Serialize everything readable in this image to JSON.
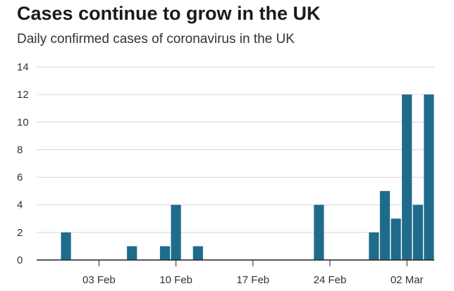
{
  "chart_data": {
    "type": "bar",
    "title": "Cases continue to grow in the UK",
    "subtitle": "Daily confirmed cases of coronavirus in the UK",
    "xlabel": "",
    "ylabel": "",
    "ylim": [
      0,
      14
    ],
    "yticks": [
      0,
      2,
      4,
      6,
      8,
      10,
      12,
      14
    ],
    "grid": true,
    "bar_color": "#1f6b8c",
    "x_start_date": "2020-01-31",
    "xticks": [
      {
        "label": "03 Feb",
        "day": 3
      },
      {
        "label": "10 Feb",
        "day": 10
      },
      {
        "label": "17 Feb",
        "day": 17
      },
      {
        "label": "24 Feb",
        "day": 24
      },
      {
        "label": "02 Mar",
        "day": 31
      }
    ],
    "x": [
      "31 Jan",
      "01 Feb",
      "02 Feb",
      "03 Feb",
      "04 Feb",
      "05 Feb",
      "06 Feb",
      "07 Feb",
      "08 Feb",
      "09 Feb",
      "10 Feb",
      "11 Feb",
      "12 Feb",
      "13 Feb",
      "14 Feb",
      "15 Feb",
      "16 Feb",
      "17 Feb",
      "18 Feb",
      "19 Feb",
      "20 Feb",
      "21 Feb",
      "22 Feb",
      "23 Feb",
      "24 Feb",
      "25 Feb",
      "26 Feb",
      "27 Feb",
      "28 Feb",
      "29 Feb",
      "01 Mar",
      "02 Mar",
      "03 Mar",
      "04 Mar"
    ],
    "values": [
      2,
      0,
      0,
      0,
      0,
      0,
      1,
      0,
      0,
      1,
      4,
      0,
      1,
      0,
      0,
      0,
      0,
      0,
      0,
      0,
      0,
      0,
      0,
      4,
      0,
      0,
      0,
      0,
      2,
      5,
      3,
      12,
      4,
      12
    ]
  }
}
